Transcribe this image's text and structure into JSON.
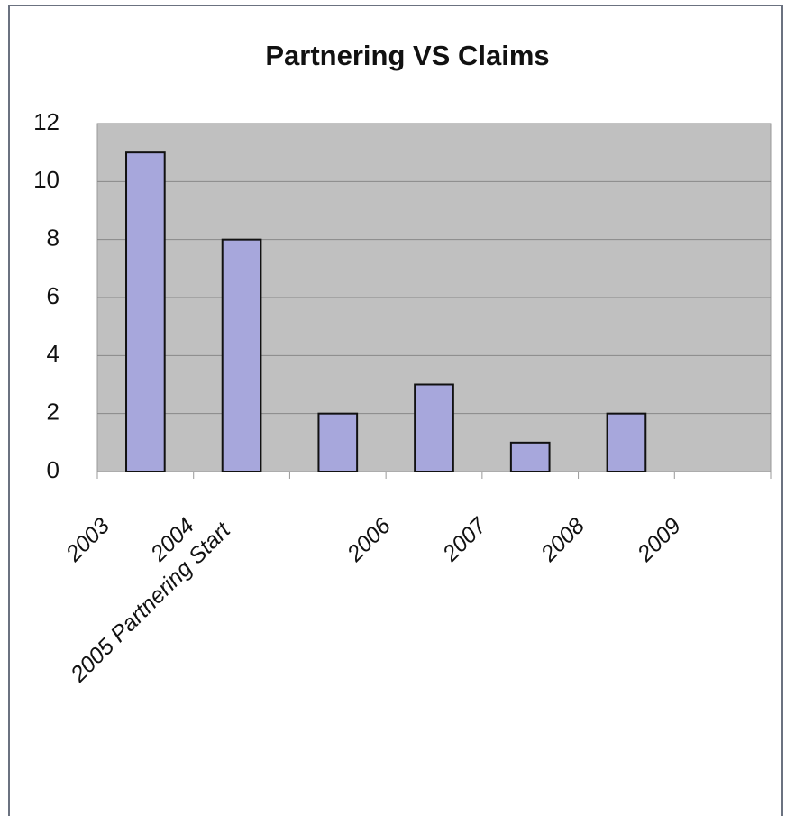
{
  "chart_data": {
    "type": "bar",
    "title": "Partnering VS Claims",
    "categories": [
      "2003",
      "2004",
      "2005 Partnering Start",
      "2006",
      "2007",
      "2008",
      "2009"
    ],
    "values": [
      11,
      8,
      2,
      3,
      1,
      2,
      null
    ],
    "color": "#a7a7dc",
    "ylim": [
      0,
      12
    ],
    "yticks": [
      0,
      2,
      4,
      6,
      8,
      10,
      12
    ],
    "grid": true
  }
}
